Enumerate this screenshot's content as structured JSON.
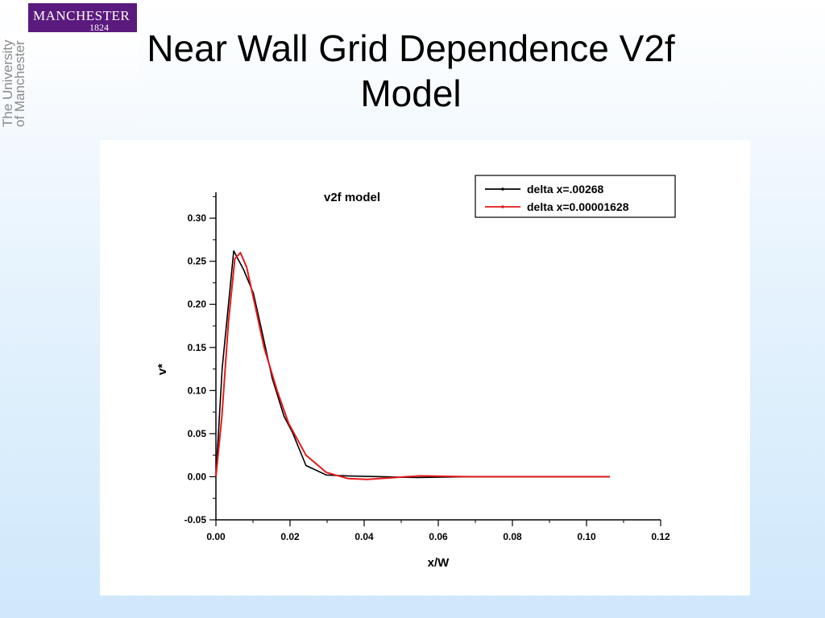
{
  "logo": {
    "name": "MANCHESTER",
    "year": "1824"
  },
  "university_text": [
    "The University",
    "of Manchester"
  ],
  "title_lines": [
    "Near Wall Grid Dependence V2f",
    "Model"
  ],
  "chart_data": {
    "type": "line",
    "title": "v2f model",
    "xlabel": "x/W",
    "ylabel": "v*",
    "xlim": [
      0,
      0.12
    ],
    "ylim": [
      -0.05,
      0.33
    ],
    "x_ticks": [
      "0.00",
      "0.02",
      "0.04",
      "0.06",
      "0.08",
      "0.10",
      "0.12"
    ],
    "y_ticks": [
      "-0.05",
      "0.00",
      "0.05",
      "0.10",
      "0.15",
      "0.20",
      "0.25",
      "0.30"
    ],
    "x_tick_values": [
      0,
      0.02,
      0.04,
      0.06,
      0.08,
      0.1,
      0.12
    ],
    "y_tick_values": [
      -0.05,
      0,
      0.05,
      0.1,
      0.15,
      0.2,
      0.25,
      0.3
    ],
    "grid": false,
    "legend_position": "top-right",
    "series": [
      {
        "name": "delta x=.00268",
        "color": "#000000",
        "x": [
          0,
          0.0017,
          0.0048,
          0.0075,
          0.0101,
          0.0125,
          0.0152,
          0.0184,
          0.0207,
          0.0243,
          0.0298,
          0.0355,
          0.045,
          0.0543,
          0.068,
          0.085,
          0.1063
        ],
        "y": [
          0,
          0.126,
          0.262,
          0.24,
          0.213,
          0.167,
          0.114,
          0.07,
          0.051,
          0.013,
          0.002,
          0.001,
          0,
          -0.001,
          0,
          0,
          0
        ]
      },
      {
        "name": "delta x=0.00001628",
        "color": "#e31a1c",
        "x": [
          0,
          0.0016,
          0.0034,
          0.0051,
          0.0066,
          0.0083,
          0.0105,
          0.013,
          0.0165,
          0.0196,
          0.0243,
          0.0298,
          0.0355,
          0.0408,
          0.048,
          0.055,
          0.068,
          0.085,
          0.1063
        ],
        "y": [
          0,
          0.07,
          0.18,
          0.253,
          0.26,
          0.243,
          0.2,
          0.15,
          0.1,
          0.062,
          0.025,
          0.005,
          -0.002,
          -0.003,
          -0.001,
          0.001,
          0,
          0,
          0
        ]
      }
    ]
  }
}
